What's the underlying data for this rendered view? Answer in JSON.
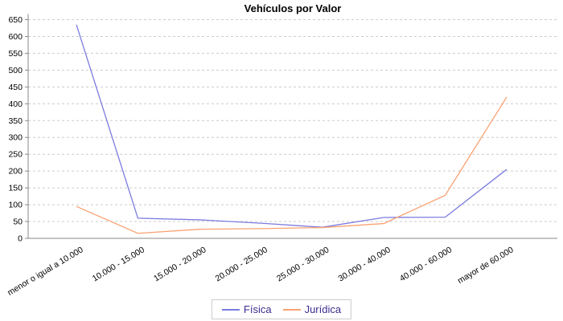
{
  "chart_data": {
    "type": "line",
    "title": "Vehículos por Valor",
    "categories": [
      "menor o igual a 10.000",
      "10.000 - 15.000",
      "15.000 - 20.000",
      "20.000 - 25.000",
      "25.000 - 30.000",
      "30.000 - 40.000",
      "40.000 - 60.000",
      "mayor de 60.000"
    ],
    "series": [
      {
        "name": "Física",
        "color": "#7b7be0",
        "values": [
          635,
          60,
          55,
          45,
          33,
          62,
          63,
          205
        ]
      },
      {
        "name": "Jurídica",
        "color": "#f9a272",
        "values": [
          95,
          15,
          27,
          29,
          32,
          44,
          128,
          420
        ]
      }
    ],
    "xlabel": "",
    "ylabel": "",
    "ylim": [
      0,
      650
    ],
    "ytick_step": 50,
    "grid": "horizontal-dashed",
    "legend_position": "bottom"
  },
  "colors": {
    "grid": "#cccccc",
    "axis": "#888888",
    "tick_text": "#000000",
    "legend_text": "#3b2d8f",
    "legend_border": "#cccccc",
    "background": "#ffffff"
  }
}
